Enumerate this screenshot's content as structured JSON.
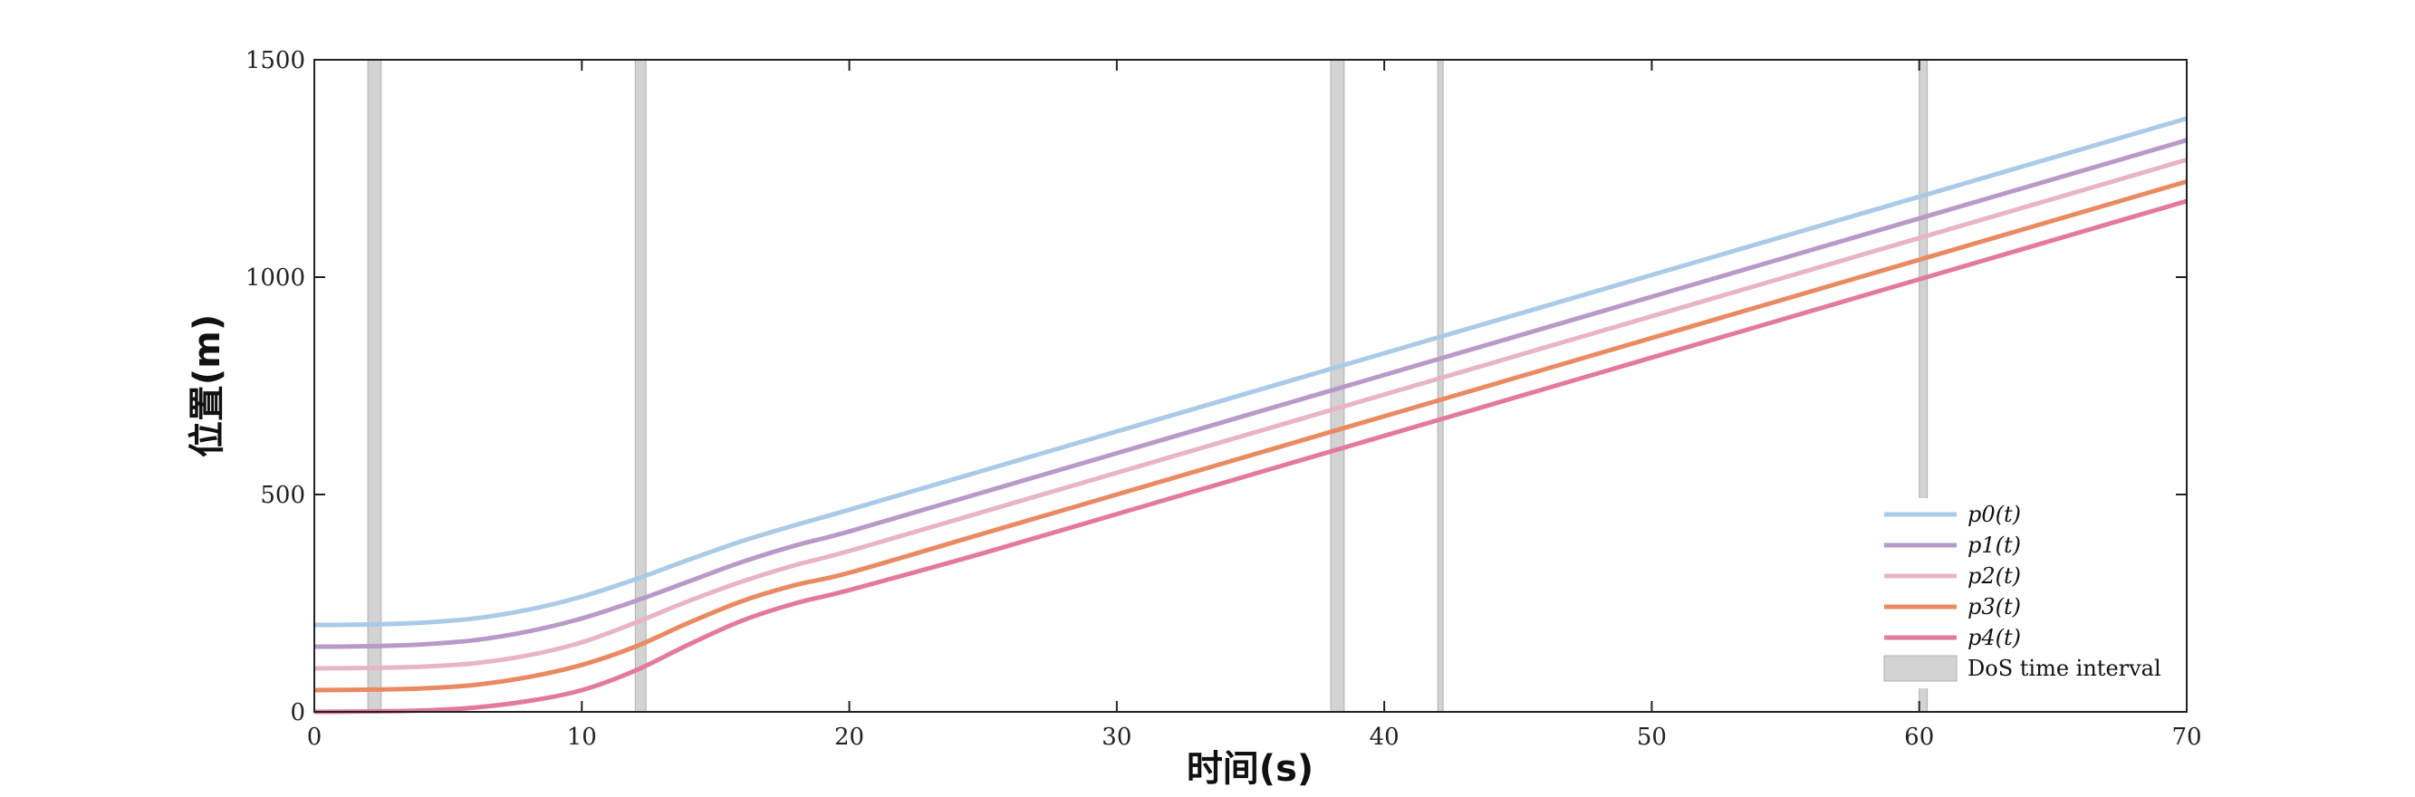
{
  "chart_data": {
    "type": "line",
    "xlabel": "时间(s)",
    "ylabel": "位置(m)",
    "xlim": [
      0,
      70
    ],
    "ylim": [
      0,
      1500
    ],
    "xticks": [
      0,
      10,
      20,
      30,
      40,
      50,
      60,
      70
    ],
    "yticks": [
      0,
      500,
      1000,
      1500
    ],
    "grid": false,
    "legend_position": "bottom-right",
    "dos_intervals": {
      "name": "DoS time interval",
      "color": "#d3d3d3",
      "ranges": [
        [
          2.0,
          2.5
        ],
        [
          12.0,
          12.4
        ],
        [
          38.0,
          38.5
        ],
        [
          42.0,
          42.2
        ],
        [
          60.0,
          60.3
        ]
      ]
    },
    "series": [
      {
        "name": "p0(t)",
        "color": "#a9cbe8",
        "x": [
          0,
          2,
          4,
          6,
          8,
          10,
          12,
          14,
          16,
          18,
          20,
          25,
          30,
          35,
          40,
          45,
          50,
          55,
          60,
          65,
          70
        ],
        "y": [
          200,
          201,
          205,
          215,
          235,
          265,
          305,
          350,
          393,
          430,
          465,
          555,
          645,
          735,
          825,
          915,
          1005,
          1095,
          1185,
          1275,
          1365
        ]
      },
      {
        "name": "p1(t)",
        "color": "#b89ac9",
        "x": [
          0,
          2,
          4,
          6,
          8,
          10,
          12,
          14,
          16,
          18,
          20,
          25,
          30,
          35,
          40,
          45,
          50,
          55,
          60,
          65,
          70
        ],
        "y": [
          150,
          151,
          155,
          165,
          185,
          215,
          255,
          300,
          345,
          383,
          415,
          505,
          595,
          685,
          775,
          865,
          955,
          1045,
          1135,
          1225,
          1315
        ]
      },
      {
        "name": "p2(t)",
        "color": "#e8b4c6",
        "x": [
          0,
          2,
          4,
          6,
          8,
          10,
          12,
          14,
          16,
          18,
          20,
          25,
          30,
          35,
          40,
          45,
          50,
          55,
          60,
          65,
          70
        ],
        "y": [
          100,
          101,
          104,
          112,
          130,
          160,
          205,
          255,
          300,
          338,
          370,
          460,
          550,
          640,
          730,
          820,
          910,
          1000,
          1090,
          1180,
          1270
        ]
      },
      {
        "name": "p3(t)",
        "color": "#e98a62",
        "x": [
          0,
          2,
          4,
          6,
          8,
          10,
          12,
          14,
          16,
          18,
          20,
          25,
          30,
          35,
          40,
          45,
          50,
          55,
          60,
          65,
          70
        ],
        "y": [
          50,
          51,
          54,
          62,
          80,
          108,
          150,
          205,
          255,
          292,
          320,
          410,
          500,
          590,
          680,
          770,
          860,
          950,
          1040,
          1130,
          1220
        ]
      },
      {
        "name": "p4(t)",
        "color": "#e3799f",
        "x": [
          0,
          2,
          4,
          6,
          8,
          10,
          12,
          14,
          16,
          18,
          20,
          25,
          30,
          35,
          40,
          45,
          50,
          55,
          60,
          65,
          70
        ],
        "y": [
          0,
          1,
          3,
          10,
          25,
          50,
          95,
          155,
          210,
          250,
          280,
          365,
          455,
          545,
          635,
          725,
          815,
          905,
          995,
          1085,
          1175
        ]
      }
    ]
  }
}
